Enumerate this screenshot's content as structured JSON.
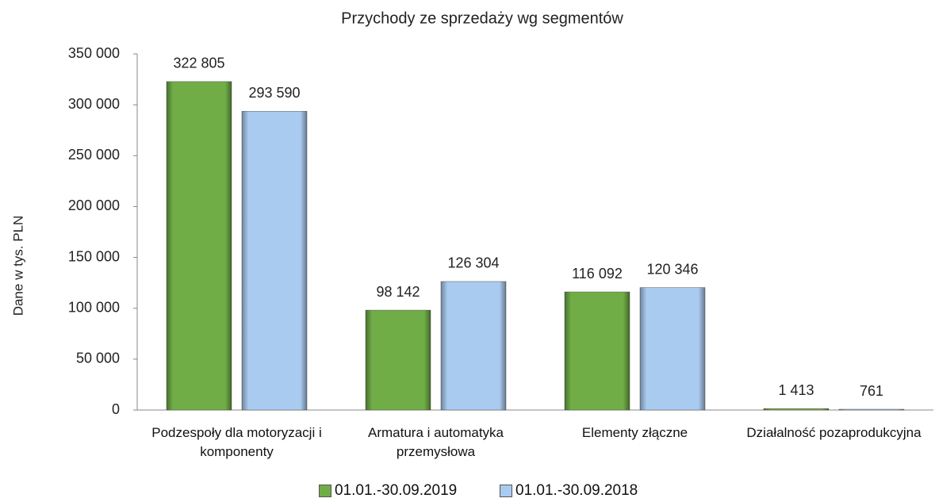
{
  "chart_data": {
    "type": "bar",
    "title": "Przychody ze sprzedaży wg segmentów",
    "y_axis_label": "Dane w tys. PLN",
    "categories": [
      "Podzespoły dla motoryzacji i komponenty",
      "Armatura i automatyka przemysłowa",
      "Elementy złączne",
      "Działalność pozaprodukcyjna"
    ],
    "series": [
      {
        "name": "01.01.-30.09.2019",
        "color": "#70ad47",
        "values": [
          322805,
          98142,
          116092,
          1413
        ],
        "value_labels": [
          "322 805",
          "98 142",
          "116 092",
          "1 413"
        ]
      },
      {
        "name": "01.01.-30.09.2018",
        "color": "#a9cbef",
        "values": [
          293590,
          126304,
          120346,
          761
        ],
        "value_labels": [
          "293 590",
          "126 304",
          "120 346",
          "761"
        ]
      }
    ],
    "ylim": [
      0,
      350000
    ],
    "yticks": [
      0,
      {
        "value": 50000,
        "label": "50 000"
      },
      {
        "value": 100000,
        "label": "100 000"
      },
      {
        "value": 150000,
        "label": "150 000"
      },
      {
        "value": 200000,
        "label": "200 000"
      },
      {
        "value": 250000,
        "label": "250 000"
      },
      {
        "value": 300000,
        "label": "300 000"
      },
      {
        "value": 350000,
        "label": "350 000"
      }
    ],
    "grid": false,
    "legend": "bottom"
  }
}
